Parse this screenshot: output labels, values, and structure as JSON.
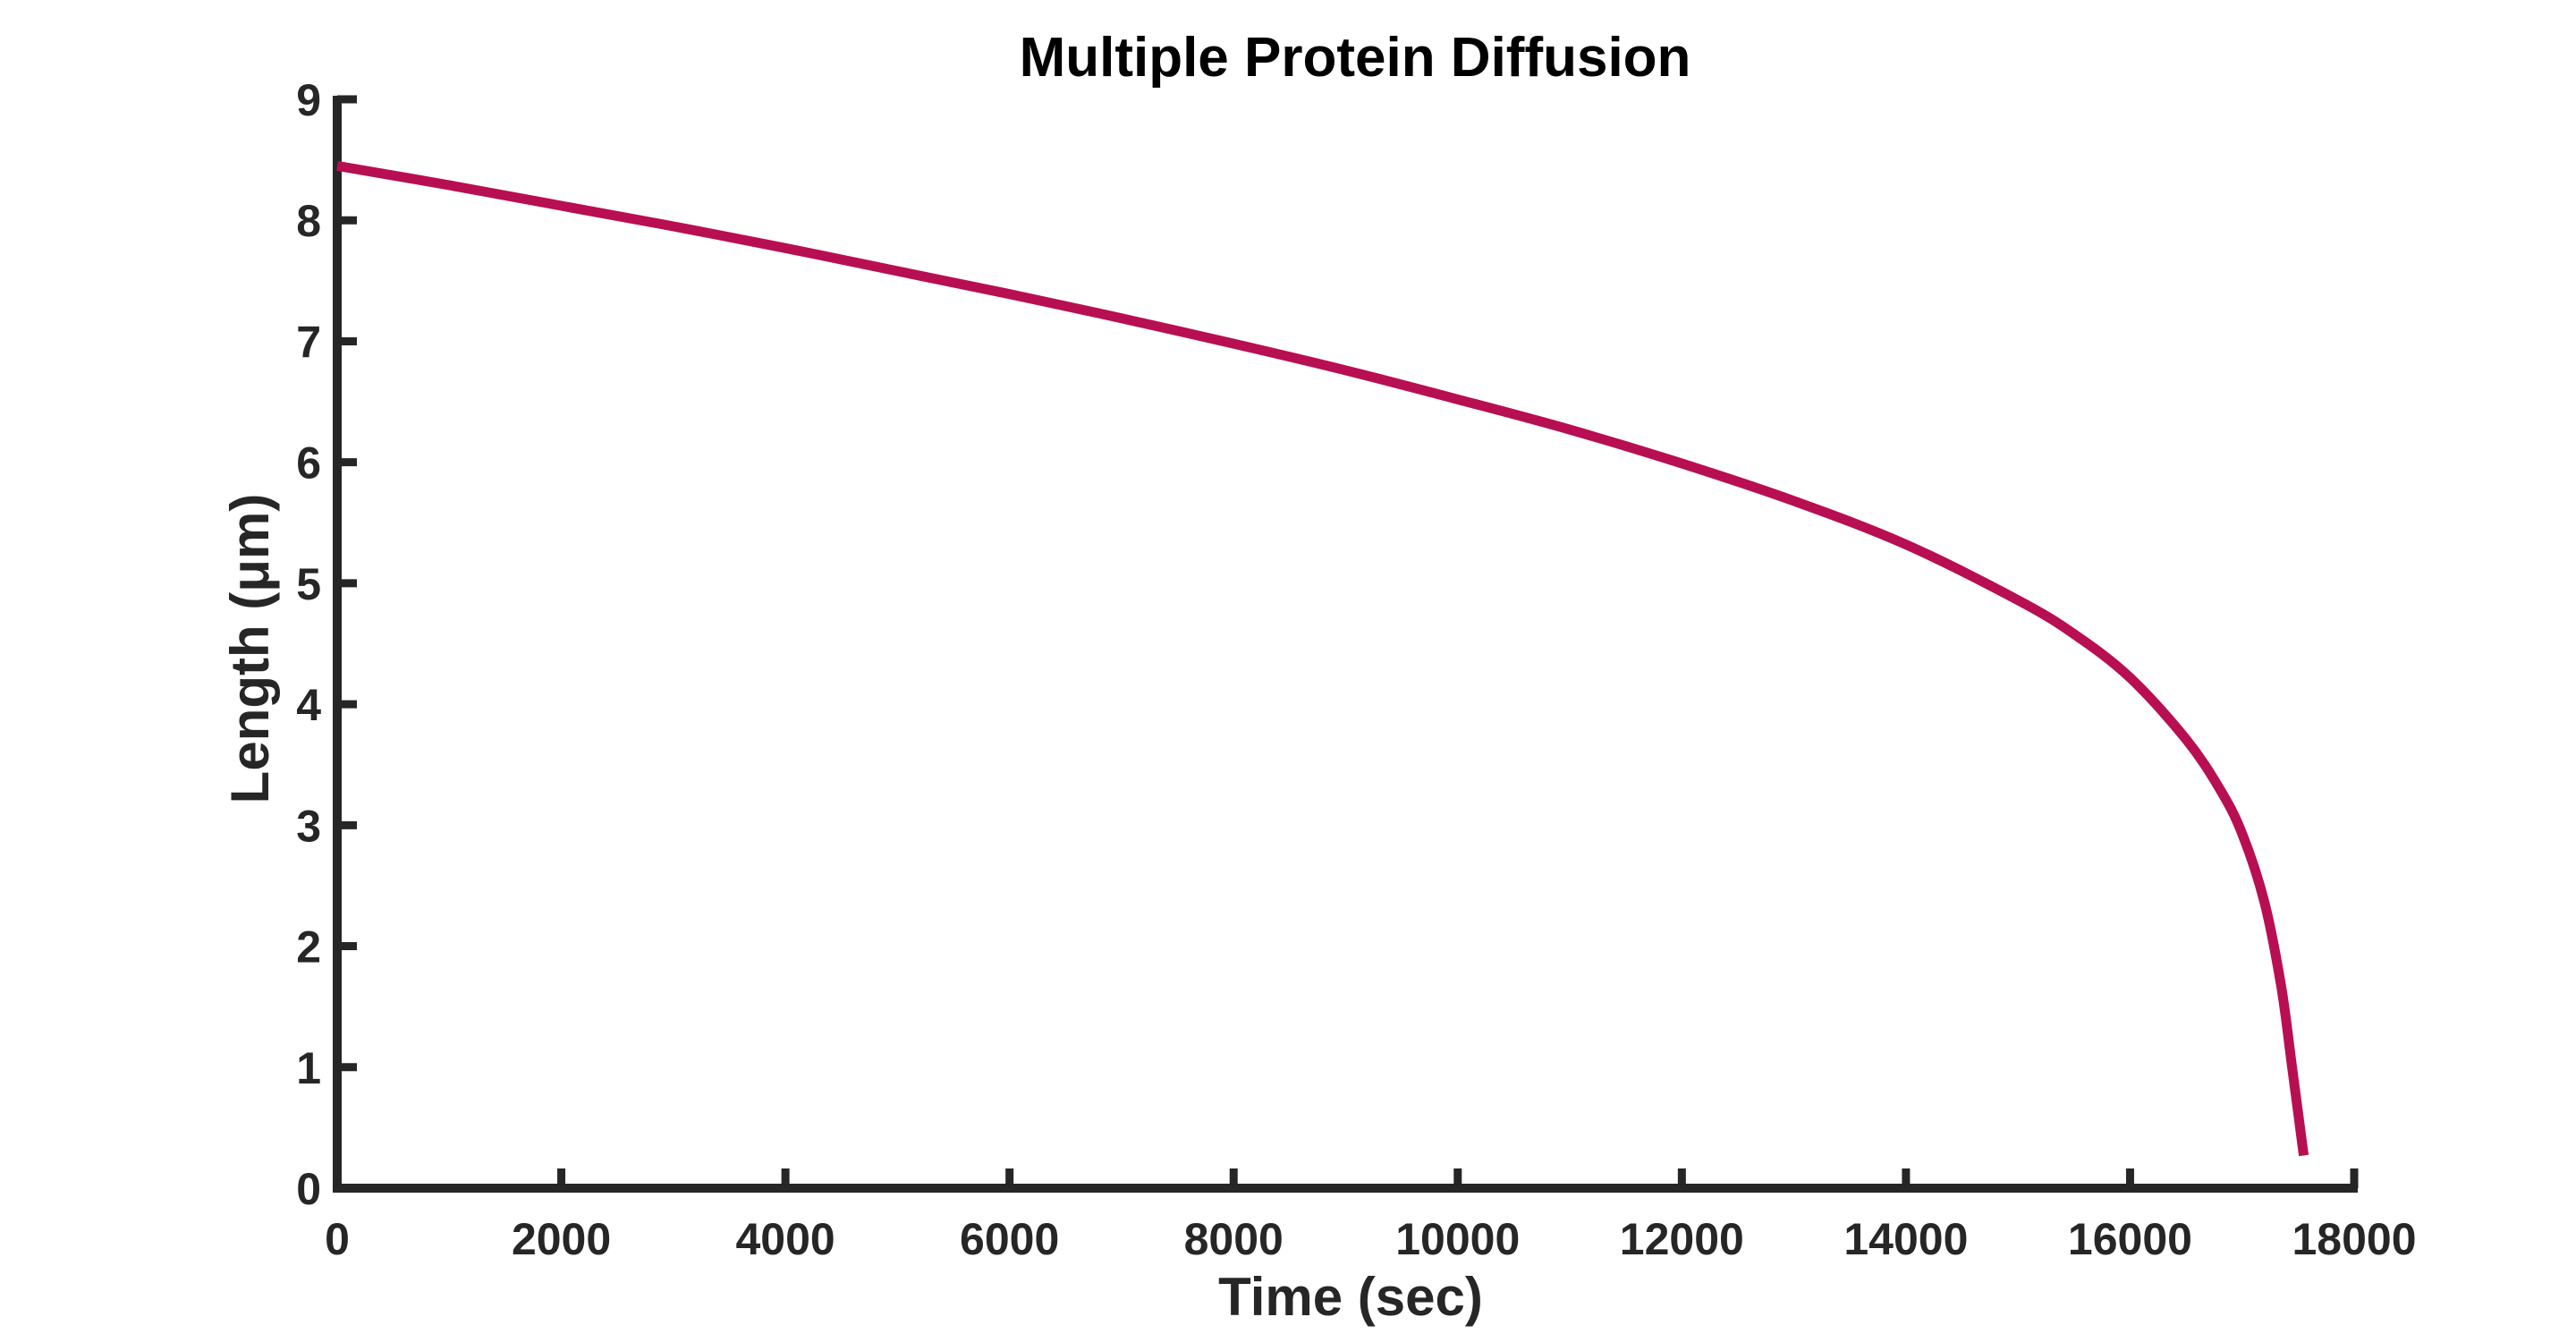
{
  "chart_data": {
    "type": "line",
    "title": "Multiple Protein Diffusion",
    "xlabel": "Time (sec)",
    "ylabel": "Length (μm)",
    "xlim": [
      0,
      18000
    ],
    "ylim": [
      0,
      9
    ],
    "xticks": [
      0,
      2000,
      4000,
      6000,
      8000,
      10000,
      12000,
      14000,
      16000,
      18000
    ],
    "yticks": [
      0,
      1,
      2,
      3,
      4,
      5,
      6,
      7,
      8,
      9
    ],
    "grid": false,
    "legend": "none",
    "series": [
      {
        "color": "#B80F52",
        "x": [
          0,
          1000,
          2000,
          3000,
          4000,
          5000,
          6000,
          7000,
          8000,
          9000,
          10000,
          11000,
          12000,
          13000,
          14000,
          15000,
          15500,
          16000,
          16500,
          16800,
          17000,
          17200,
          17350,
          17450,
          17550
        ],
        "y": [
          8.45,
          8.29,
          8.12,
          7.95,
          7.77,
          7.58,
          7.39,
          7.19,
          6.98,
          6.76,
          6.52,
          6.27,
          5.99,
          5.68,
          5.32,
          4.86,
          4.58,
          4.22,
          3.71,
          3.3,
          2.93,
          2.36,
          1.66,
          0.97,
          0.27
        ]
      }
    ]
  }
}
